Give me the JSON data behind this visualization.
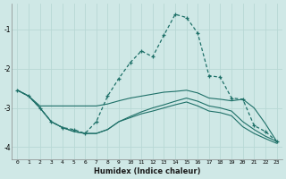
{
  "xlabel": "Humidex (Indice chaleur)",
  "bg_color": "#cfe8e6",
  "grid_color": "#b8d8d5",
  "line_color": "#1e7068",
  "xlim": [
    -0.5,
    23.5
  ],
  "ylim": [
    -4.3,
    -0.35
  ],
  "yticks": [
    -4,
    -3,
    -2,
    -1
  ],
  "xtick_labels": [
    "0",
    "1",
    "2",
    "3",
    "4",
    "5",
    "6",
    "7",
    "8",
    "9",
    "10",
    "11",
    "12",
    "13",
    "14",
    "15",
    "16",
    "17",
    "18",
    "19",
    "20",
    "21",
    "22",
    "23"
  ],
  "line1_x": [
    0,
    1,
    2,
    3,
    4,
    5,
    6,
    7,
    8,
    9,
    10,
    11,
    12,
    13,
    14,
    15,
    16,
    17,
    18,
    19,
    20,
    21,
    22,
    23
  ],
  "line1_y": [
    -2.55,
    -2.7,
    -3.0,
    -3.35,
    -3.5,
    -3.55,
    -3.65,
    -3.35,
    -2.7,
    -2.25,
    -1.85,
    -1.55,
    -1.7,
    -1.15,
    -0.62,
    -0.7,
    -1.1,
    -2.18,
    -2.22,
    -2.75,
    -2.78,
    -3.45,
    -3.6,
    -3.85
  ],
  "line2_x": [
    0,
    1,
    2,
    3,
    4,
    5,
    6,
    7,
    8,
    9,
    10,
    11,
    12,
    13,
    14,
    15,
    16,
    17,
    18,
    19,
    20,
    21,
    22,
    23
  ],
  "line2_y": [
    -2.55,
    -2.7,
    -2.95,
    -2.95,
    -2.95,
    -2.95,
    -2.95,
    -2.95,
    -2.9,
    -2.82,
    -2.75,
    -2.7,
    -2.65,
    -2.6,
    -2.58,
    -2.55,
    -2.62,
    -2.75,
    -2.78,
    -2.82,
    -2.78,
    -3.0,
    -3.4,
    -3.85
  ],
  "line3_x": [
    0,
    1,
    2,
    3,
    4,
    5,
    6,
    7,
    8,
    9,
    10,
    11,
    12,
    13,
    14,
    15,
    16,
    17,
    18,
    19,
    20,
    21,
    22,
    23
  ],
  "line3_y": [
    -2.55,
    -2.7,
    -3.0,
    -3.35,
    -3.5,
    -3.6,
    -3.65,
    -3.65,
    -3.55,
    -3.35,
    -3.22,
    -3.1,
    -3.0,
    -2.92,
    -2.83,
    -2.75,
    -2.83,
    -2.95,
    -3.0,
    -3.08,
    -3.35,
    -3.55,
    -3.72,
    -3.85
  ],
  "line4_x": [
    0,
    1,
    2,
    3,
    4,
    5,
    6,
    7,
    8,
    9,
    10,
    11,
    12,
    13,
    14,
    15,
    16,
    17,
    18,
    19,
    20,
    21,
    22,
    23
  ],
  "line4_y": [
    -2.55,
    -2.7,
    -3.0,
    -3.35,
    -3.5,
    -3.6,
    -3.65,
    -3.65,
    -3.55,
    -3.35,
    -3.25,
    -3.15,
    -3.08,
    -3.0,
    -2.92,
    -2.85,
    -2.95,
    -3.08,
    -3.12,
    -3.2,
    -3.48,
    -3.65,
    -3.78,
    -3.9
  ]
}
